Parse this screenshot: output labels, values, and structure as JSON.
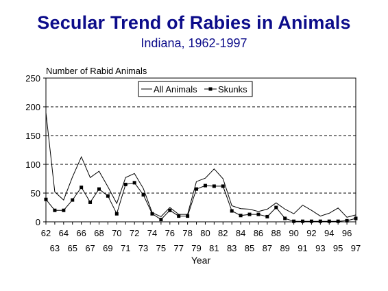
{
  "page": {
    "title": "Secular Trend of Rabies in Animals",
    "subtitle": "Indiana, 1962-1997"
  },
  "chart_data": {
    "type": "line",
    "title": "Secular Trend of Rabies in Animals",
    "subtitle": "Indiana, 1962-1997",
    "ylabel": "Number of Rabid Animals",
    "xlabel": "Year",
    "ylim": [
      0,
      250
    ],
    "yticks": [
      0,
      50,
      100,
      150,
      200,
      250
    ],
    "grid": "horizontal dashed",
    "legend_position": "top-left",
    "categories": [
      "62",
      "63",
      "64",
      "65",
      "66",
      "67",
      "68",
      "69",
      "70",
      "71",
      "72",
      "73",
      "74",
      "75",
      "76",
      "77",
      "78",
      "79",
      "80",
      "81",
      "82",
      "83",
      "84",
      "85",
      "86",
      "87",
      "88",
      "89",
      "90",
      "91",
      "92",
      "93",
      "94",
      "95",
      "96",
      "97"
    ],
    "series": [
      {
        "name": "All Animals",
        "marker": "none",
        "color": "#000000",
        "values": [
          190,
          52,
          38,
          78,
          113,
          77,
          88,
          61,
          32,
          77,
          84,
          58,
          16,
          9,
          25,
          13,
          13,
          70,
          76,
          92,
          75,
          28,
          23,
          22,
          18,
          22,
          33,
          22,
          14,
          29,
          20,
          10,
          15,
          24,
          8,
          12
        ]
      },
      {
        "name": "Skunks",
        "marker": "square",
        "color": "#000000",
        "values": [
          39,
          20,
          20,
          38,
          60,
          34,
          57,
          45,
          14,
          65,
          68,
          47,
          14,
          4,
          20,
          10,
          10,
          57,
          63,
          62,
          62,
          19,
          11,
          13,
          13,
          9,
          25,
          6,
          1,
          1,
          1,
          1,
          1,
          1,
          2,
          6
        ]
      }
    ]
  }
}
